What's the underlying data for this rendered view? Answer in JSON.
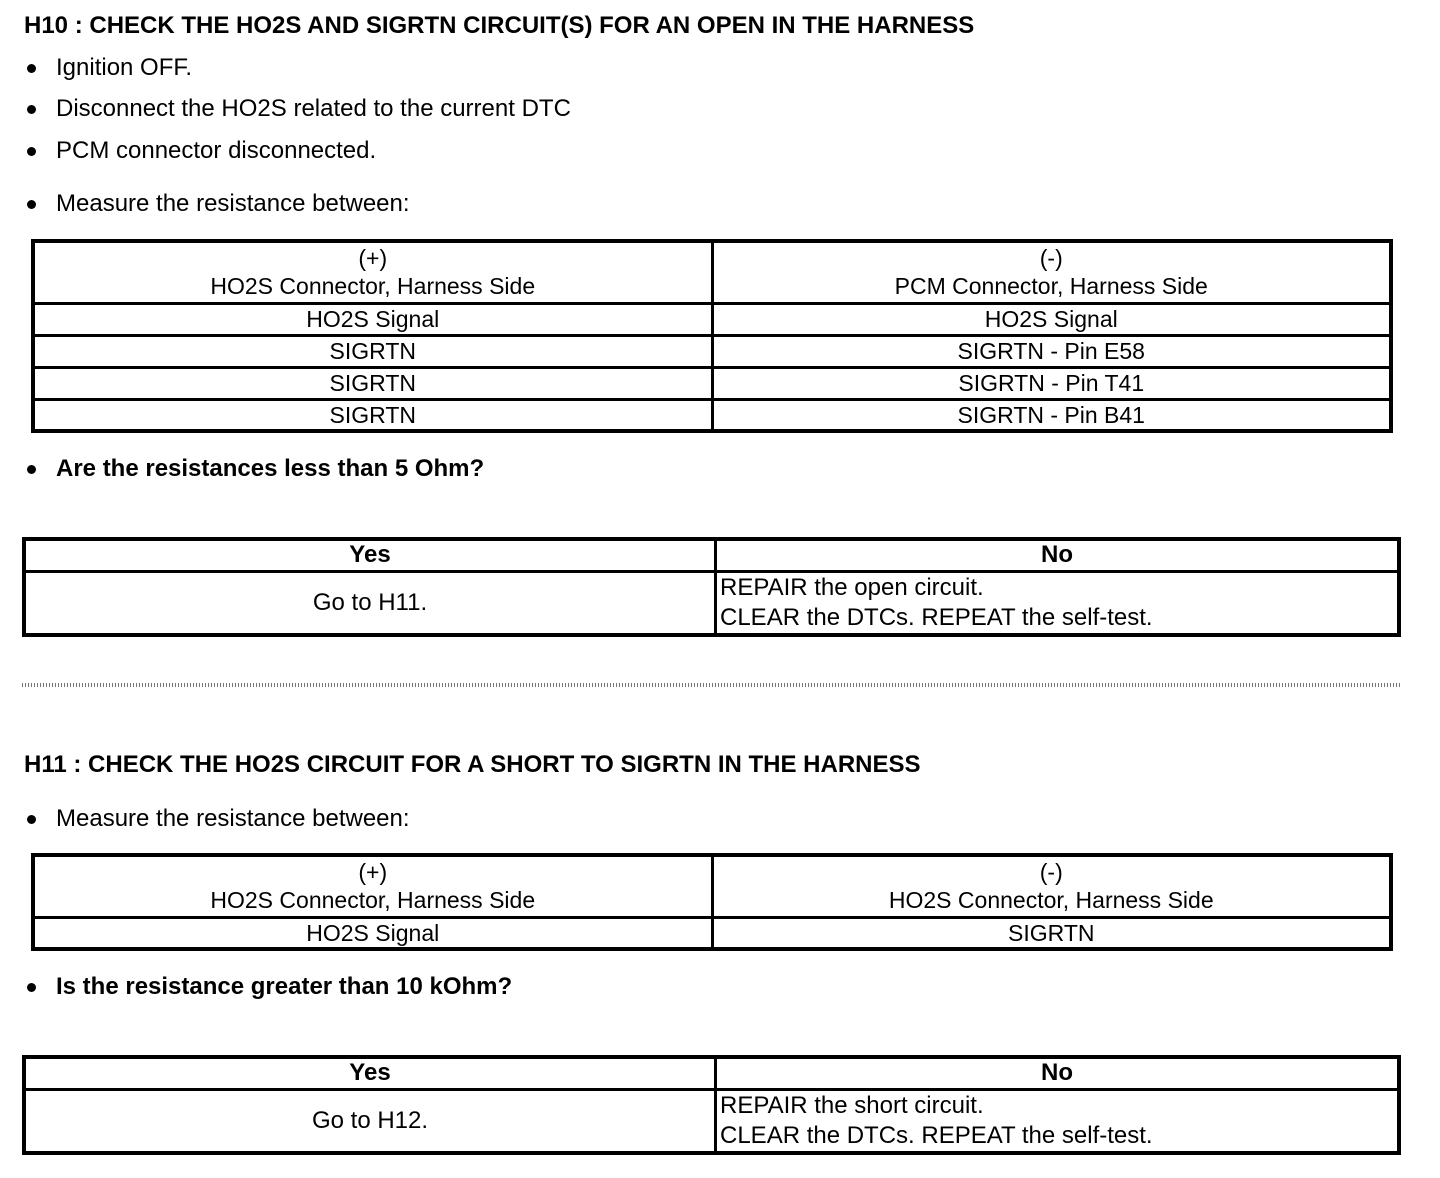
{
  "h10": {
    "title": "H10 : CHECK THE HO2S AND SIGRTN CIRCUIT(S) FOR AN OPEN IN THE HARNESS",
    "bullets": [
      "Ignition OFF.",
      "Disconnect the HO2S related to the current DTC",
      "PCM connector disconnected.",
      "Measure the resistance between:"
    ],
    "table": {
      "header": [
        [
          "(+)",
          "HO2S Connector, Harness Side"
        ],
        [
          "(-)",
          "PCM Connector, Harness Side"
        ]
      ],
      "rows": [
        [
          "HO2S Signal",
          "HO2S Signal"
        ],
        [
          "SIGRTN",
          "SIGRTN - Pin E58"
        ],
        [
          "SIGRTN",
          "SIGRTN - Pin T41"
        ],
        [
          "SIGRTN",
          "SIGRTN - Pin B41"
        ]
      ]
    },
    "question": "Are the resistances less than 5 Ohm?",
    "result": {
      "yes_label": "Yes",
      "no_label": "No",
      "yes": "Go to H11.",
      "no": [
        "REPAIR the open circuit.",
        "CLEAR the DTCs. REPEAT the self-test."
      ]
    }
  },
  "h11": {
    "title": "H11 : CHECK THE HO2S CIRCUIT FOR A SHORT TO SIGRTN IN THE HARNESS",
    "bullets": [
      "Measure the resistance between:"
    ],
    "table": {
      "header": [
        [
          "(+)",
          "HO2S Connector, Harness Side"
        ],
        [
          "(-)",
          "HO2S Connector, Harness Side"
        ]
      ],
      "rows": [
        [
          "HO2S Signal",
          "SIGRTN"
        ]
      ]
    },
    "question": "Is the resistance greater than 10 kOhm?",
    "result": {
      "yes_label": "Yes",
      "no_label": "No",
      "yes": "Go to H12.",
      "no": [
        "REPAIR the short circuit.",
        "CLEAR the DTCs. REPEAT the self-test."
      ]
    }
  }
}
